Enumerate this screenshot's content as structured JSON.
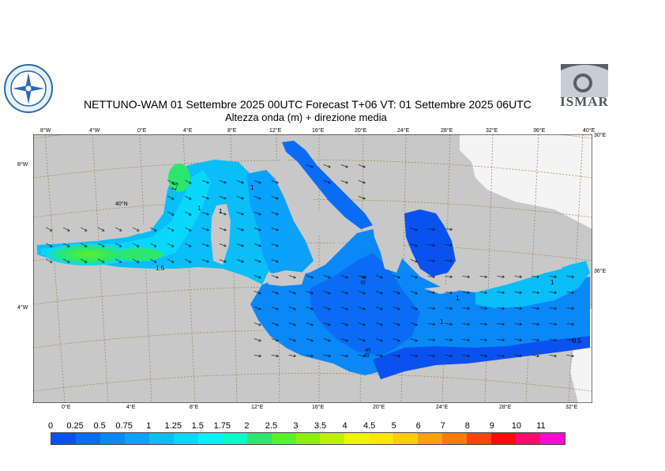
{
  "header": {
    "title_line1": "NETTUNO-WAM  01 Settembre 2025 00UTC Forecast T+06 VT: 01 Settembre 2025 06UTC",
    "title_line2": "Altezza onda (m) + direzione media"
  },
  "logos": {
    "right_text": "ISMAR",
    "left_icon": "compass-rose-logo-icon"
  },
  "map": {
    "top_ticks": [
      "8°W",
      "4°W",
      "0°E",
      "4°E",
      "8°E",
      "12°E",
      "16°E",
      "20°E",
      "24°E",
      "28°E",
      "32°E",
      "36°E",
      "40°E"
    ],
    "bottom_ticks": [
      "0°E",
      "4°E",
      "8°E",
      "12°E",
      "16°E",
      "20°E",
      "24°E",
      "28°E",
      "32°E"
    ],
    "left_ticks": [
      "8°W",
      "40°N",
      "4°W"
    ],
    "right_ticks": [
      "30°E",
      "36°E"
    ],
    "contour_labels": [
      "1.5",
      "1",
      "1",
      "1",
      "1.5",
      "0.5",
      "0.5",
      "1",
      "1",
      "1",
      "0.5"
    ],
    "colors": {
      "land": "#c8c8c8",
      "white_land": "#f4f4f4",
      "graticule": "#a0865a"
    }
  },
  "legend": {
    "labels": [
      "0",
      "0.25",
      "0.5",
      "0.75",
      "1",
      "1.25",
      "1.5",
      "1.75",
      "2",
      "2.5",
      "3",
      "3.5",
      "4",
      "4.5",
      "5",
      "6",
      "7",
      "8",
      "9",
      "10",
      "11"
    ],
    "colors": [
      "#0a52f0",
      "#0a6cf5",
      "#0a88f8",
      "#0aa2fa",
      "#0abef8",
      "#0ad8fa",
      "#0af0f8",
      "#0afac8",
      "#2ce66e",
      "#5cf028",
      "#8cf00a",
      "#bef00a",
      "#eef40a",
      "#fae60a",
      "#facc0a",
      "#faa00a",
      "#fa7a0a",
      "#fa440a",
      "#fa0a0a",
      "#fa0a6e",
      "#fa0ad0"
    ]
  }
}
